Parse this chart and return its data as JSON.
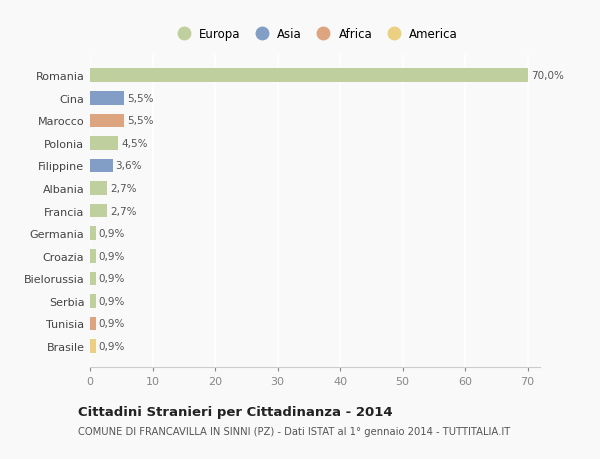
{
  "countries": [
    "Romania",
    "Cina",
    "Marocco",
    "Polonia",
    "Filippine",
    "Albania",
    "Francia",
    "Germania",
    "Croazia",
    "Bielorussia",
    "Serbia",
    "Tunisia",
    "Brasile"
  ],
  "values": [
    70.0,
    5.5,
    5.5,
    4.5,
    3.6,
    2.7,
    2.7,
    0.9,
    0.9,
    0.9,
    0.9,
    0.9,
    0.9
  ],
  "labels": [
    "70,0%",
    "5,5%",
    "5,5%",
    "4,5%",
    "3,6%",
    "2,7%",
    "2,7%",
    "0,9%",
    "0,9%",
    "0,9%",
    "0,9%",
    "0,9%",
    "0,9%"
  ],
  "colors": [
    "#b5c98e",
    "#6d8ebf",
    "#d9956b",
    "#b5c98e",
    "#6d8ebf",
    "#b5c98e",
    "#b5c98e",
    "#b5c98e",
    "#b5c98e",
    "#b5c98e",
    "#b5c98e",
    "#d9956b",
    "#e8c96b"
  ],
  "legend_labels": [
    "Europa",
    "Asia",
    "Africa",
    "America"
  ],
  "legend_colors": [
    "#b5c98e",
    "#6d8ebf",
    "#d9956b",
    "#e8c96b"
  ],
  "title": "Cittadini Stranieri per Cittadinanza - 2014",
  "subtitle": "COMUNE DI FRANCAVILLA IN SINNI (PZ) - Dati ISTAT al 1° gennaio 2014 - TUTTITALIA.IT",
  "xlim": [
    0,
    72
  ],
  "xticks": [
    0,
    10,
    20,
    30,
    40,
    50,
    60,
    70
  ],
  "bg_color": "#f9f9f9",
  "grid_color": "#ffffff",
  "bar_height": 0.6
}
